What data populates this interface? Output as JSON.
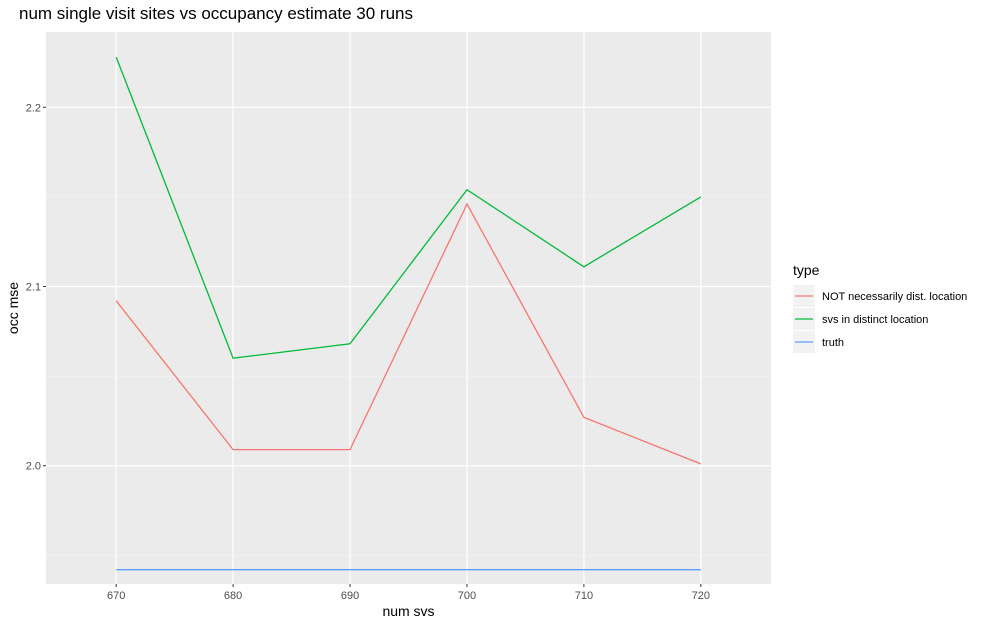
{
  "chart_data": {
    "type": "line",
    "title": "num single visit sites vs occupancy estimate 30 runs",
    "xlabel": "num svs",
    "ylabel": "occ mse",
    "x": [
      670,
      680,
      690,
      700,
      710,
      720
    ],
    "xlim": [
      664,
      726
    ],
    "ylim": [
      1.934,
      2.242
    ],
    "x_ticks": [
      670,
      680,
      690,
      700,
      710,
      720
    ],
    "y_ticks": [
      2.0,
      2.1,
      2.2
    ],
    "y_tick_labels": [
      "2.0",
      "2.1",
      "2.2"
    ],
    "grid": true,
    "legend": {
      "title": "type",
      "placement": "right"
    },
    "series": [
      {
        "name": "NOT necessarily dist. location",
        "color": "#f8766d",
        "values": [
          2.092,
          2.009,
          2.009,
          2.146,
          2.027,
          2.001
        ]
      },
      {
        "name": "svs in distinct location",
        "color": "#00ba38",
        "values": [
          2.228,
          2.06,
          2.068,
          2.154,
          2.111,
          2.15
        ]
      },
      {
        "name": "truth",
        "color": "#619cff",
        "values": [
          1.942,
          1.942,
          1.942,
          1.942,
          1.942,
          1.942
        ]
      }
    ]
  }
}
